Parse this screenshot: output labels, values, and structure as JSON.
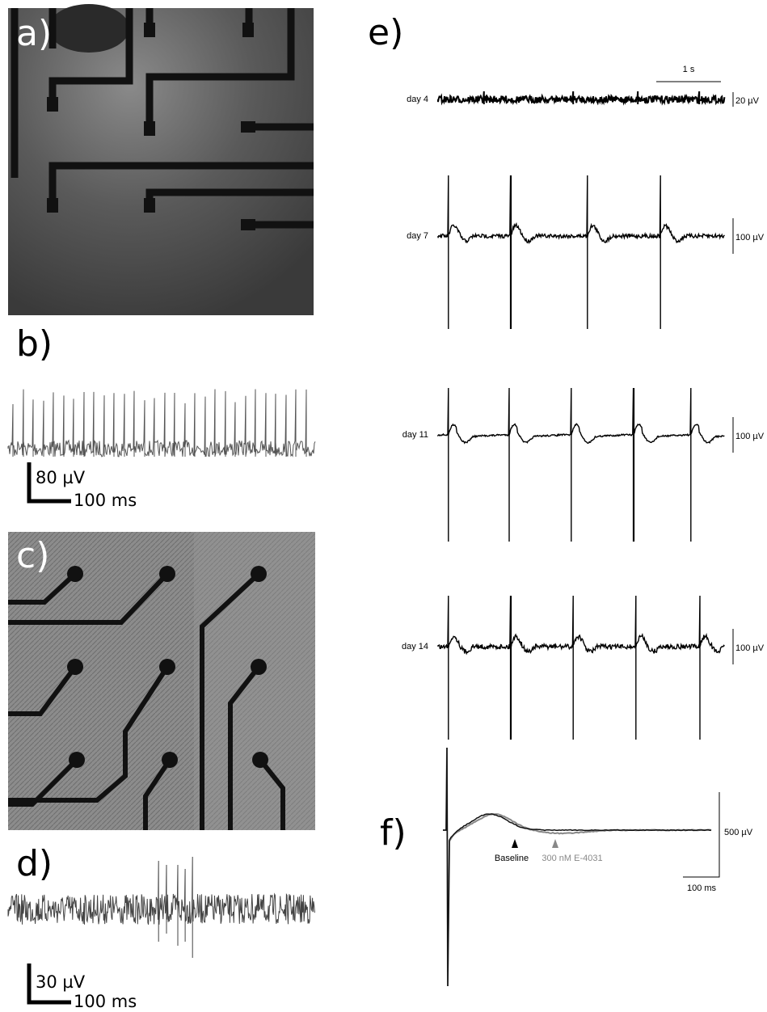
{
  "panels": {
    "a": {
      "label": "a)"
    },
    "b": {
      "label": "b)",
      "scale_y": "80 µV",
      "scale_x": "100 ms"
    },
    "c": {
      "label": "c)"
    },
    "d": {
      "label": "d)",
      "scale_y": "30 µV",
      "scale_x": "100 ms"
    },
    "e": {
      "label": "e)",
      "time_scale": "1 s",
      "traces": [
        {
          "day": "day 4",
          "scale": "20 µV"
        },
        {
          "day": "day 7",
          "scale": "100 µV"
        },
        {
          "day": "day 11",
          "scale": "100 µV"
        },
        {
          "day": "day 14",
          "scale": "100 µV"
        }
      ]
    },
    "f": {
      "label": "f)",
      "scale_y": "500 µV",
      "scale_x": "100 ms",
      "legend": [
        "Baseline",
        "300 nM E-4031"
      ]
    }
  }
}
